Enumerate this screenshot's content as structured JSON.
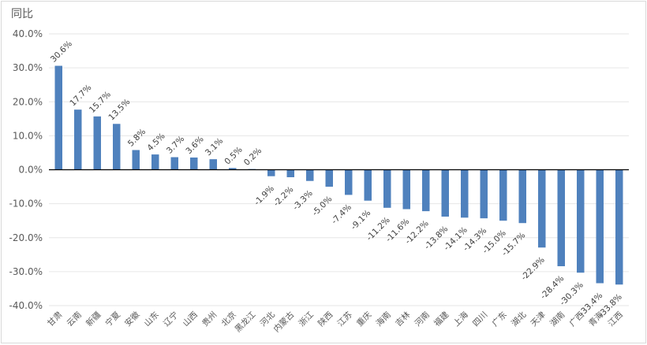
{
  "chart_data": {
    "type": "bar",
    "title": "",
    "ylabel": "同比",
    "xlabel": "",
    "ylim": [
      -40,
      40
    ],
    "yticks": [
      "40.0%",
      "30.0%",
      "20.0%",
      "10.0%",
      "0.0%",
      "-10.0%",
      "-20.0%",
      "-30.0%",
      "-40.0%"
    ],
    "grid": true,
    "bar_color": "#4f81bd",
    "categories": [
      "甘肃",
      "云南",
      "新疆",
      "宁夏",
      "安徽",
      "山东",
      "辽宁",
      "山西",
      "贵州",
      "北京",
      "黑龙江",
      "河北",
      "内蒙古",
      "浙江",
      "陕西",
      "江苏",
      "重庆",
      "海南",
      "吉林",
      "河南",
      "福建",
      "上海",
      "四川",
      "广东",
      "湖北",
      "天津",
      "湖南",
      "广西",
      "青海",
      "江西"
    ],
    "values": [
      30.6,
      17.7,
      15.7,
      13.5,
      5.8,
      4.5,
      3.7,
      3.6,
      3.1,
      0.5,
      0.2,
      -1.9,
      -2.2,
      -3.3,
      -5.0,
      -7.4,
      -9.1,
      -11.2,
      -11.6,
      -12.2,
      -13.8,
      -14.1,
      -14.3,
      -15.0,
      -15.7,
      -22.9,
      -28.4,
      -30.3,
      -33.4,
      -33.8
    ],
    "data_labels": [
      "30.6%",
      "17.7%",
      "15.7%",
      "13.5%",
      "5.8%",
      "4.5%",
      "3.7%",
      "3.6%",
      "3.1%",
      "0.5%",
      "0.2%",
      "-1.9%",
      "-2.2%",
      "-3.3%",
      "-5.0%",
      "-7.4%",
      "-9.1%",
      "-11.2%",
      "-11.6%",
      "-12.2%",
      "-13.8%",
      "-14.1%",
      "-14.3%",
      "-15.0%",
      "-15.7%",
      "-22.9%",
      "-28.4%",
      "-30.3%",
      "-33.4%",
      "-33.8%"
    ]
  }
}
